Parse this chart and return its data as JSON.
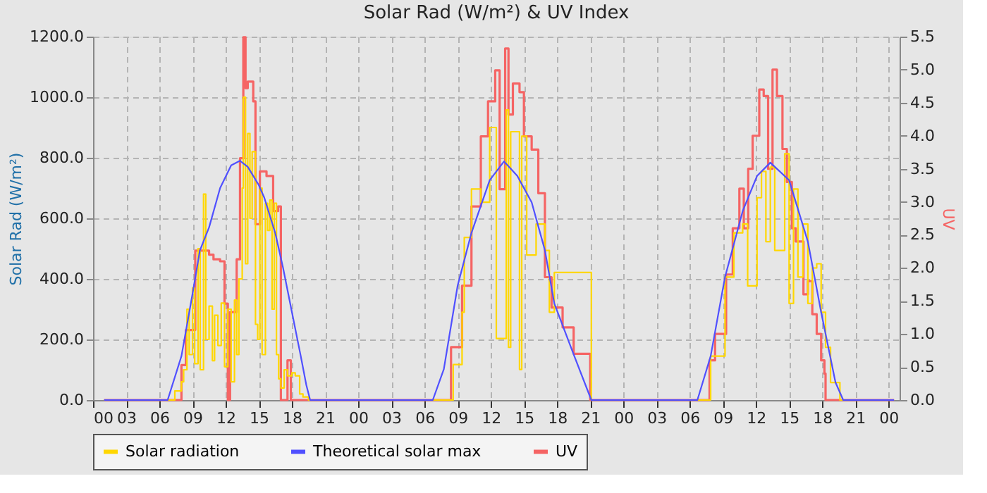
{
  "chart_data": {
    "type": "line",
    "title": "Solar Rad (W/m²) &  UV Index",
    "ylabel": "Solar Rad (W/m²)",
    "y2label": "UV",
    "xlim": [
      0,
      73
    ],
    "xticks": [
      {
        "value": 0,
        "label": "00"
      },
      {
        "value": 3,
        "label": "03"
      },
      {
        "value": 6,
        "label": "06"
      },
      {
        "value": 9,
        "label": "09"
      },
      {
        "value": 12,
        "label": "12"
      },
      {
        "value": 15,
        "label": "15"
      },
      {
        "value": 18,
        "label": "18"
      },
      {
        "value": 21,
        "label": "21"
      },
      {
        "value": 24,
        "label": "00"
      },
      {
        "value": 27,
        "label": "03"
      },
      {
        "value": 30,
        "label": "06"
      },
      {
        "value": 33,
        "label": "09"
      },
      {
        "value": 36,
        "label": "12"
      },
      {
        "value": 39,
        "label": "15"
      },
      {
        "value": 42,
        "label": "18"
      },
      {
        "value": 45,
        "label": "21"
      },
      {
        "value": 48,
        "label": "00"
      },
      {
        "value": 51,
        "label": "03"
      },
      {
        "value": 54,
        "label": "06"
      },
      {
        "value": 57,
        "label": "09"
      },
      {
        "value": 60,
        "label": "12"
      },
      {
        "value": 63,
        "label": "15"
      },
      {
        "value": 66,
        "label": "18"
      },
      {
        "value": 69,
        "label": "21"
      },
      {
        "value": 72,
        "label": "00"
      }
    ],
    "ylim": [
      0,
      1200
    ],
    "yticks": [
      {
        "value": 0,
        "label": "0.0"
      },
      {
        "value": 200,
        "label": "200.0"
      },
      {
        "value": 400,
        "label": "400.0"
      },
      {
        "value": 600,
        "label": "600.0"
      },
      {
        "value": 800,
        "label": "800.0"
      },
      {
        "value": 1000,
        "label": "1000.0"
      },
      {
        "value": 1200,
        "label": "1200.0"
      }
    ],
    "y2lim": [
      0,
      5.5
    ],
    "y2ticks": [
      {
        "value": 0,
        "label": "0.0"
      },
      0.5,
      {
        "value": 1,
        "label": "1.0"
      },
      1.5,
      {
        "value": 2,
        "label": "2.0"
      },
      2.5,
      {
        "value": 3,
        "label": "3.0"
      },
      3.5,
      {
        "value": 4,
        "label": "4.0"
      },
      4.5,
      {
        "value": 5,
        "label": "5.0"
      },
      5.5
    ],
    "grid": true,
    "legend": "bottom",
    "marker": "none",
    "series": [
      {
        "name": "Solar radiation",
        "type": "step",
        "color": "#ffd700",
        "x": [
          1,
          6.75,
          7.4,
          8,
          8.2,
          8.5,
          8.7,
          9,
          9.2,
          9.5,
          9.7,
          10,
          10.2,
          10.5,
          10.8,
          11,
          11.3,
          11.6,
          11.9,
          12.2,
          12.5,
          12.8,
          13,
          13.2,
          13.5,
          13.6,
          13.8,
          14,
          14.2,
          14.4,
          14.7,
          14.9,
          15.1,
          15.3,
          15.6,
          15.8,
          16,
          16.2,
          16.4,
          16.6,
          16.8,
          17,
          17.3,
          17.6,
          18,
          18.3,
          18.7,
          19,
          19.5,
          30.75,
          32.6,
          33.4,
          33.6,
          34.25,
          35.1,
          35.9,
          36.5,
          37.4,
          37.6,
          37.8,
          38.6,
          38.8,
          39.25,
          40.1,
          40.9,
          41.3,
          41.75,
          45.1,
          54.6,
          55.9,
          57.2,
          58,
          58.8,
          59.25,
          60.1,
          60.5,
          60.9,
          61.3,
          61.7,
          62.6,
          63,
          63.4,
          63.8,
          64.25,
          64.7,
          65.1,
          65.5,
          65.9,
          66.3,
          66.75,
          67.6,
          72.5
        ],
        "values": [
          0,
          0,
          30,
          60,
          100,
          300,
          150,
          370,
          120,
          500,
          100,
          680,
          200,
          310,
          130,
          280,
          180,
          320,
          110,
          300,
          60,
          330,
          150,
          400,
          700,
          1000,
          450,
          880,
          600,
          820,
          250,
          200,
          700,
          150,
          650,
          560,
          660,
          300,
          650,
          150,
          70,
          40,
          100,
          80,
          90,
          80,
          20,
          10,
          0,
          0,
          117,
          290,
          537,
          697,
          653,
          900,
          203,
          958,
          174,
          886,
          101,
          871,
          479,
          581,
          494,
          290,
          421,
          0,
          0,
          145,
          406,
          552,
          581,
          377,
          668,
          755,
          523,
          769,
          494,
          813,
          319,
          697,
          406,
          581,
          319,
          436,
          450,
          290,
          174,
          58,
          0,
          0
        ]
      },
      {
        "name": "Theoretical solar max",
        "color": "#5050ff",
        "x": [
          1,
          6.75,
          8,
          9,
          9.67,
          10.5,
          11.5,
          12.5,
          13.3,
          14,
          15,
          15.5,
          16.5,
          17.2,
          18,
          18.8,
          19.3,
          19.65,
          30.75,
          31.75,
          33,
          34.25,
          35.9,
          37.2,
          38.4,
          39.7,
          40.9,
          41.75,
          43.4,
          45.1,
          54.7,
          55.9,
          57.2,
          58.8,
          60.1,
          61.3,
          63,
          64.7,
          65.9,
          67.2,
          67.9,
          72.5
        ],
        "values": [
          0,
          0,
          145,
          350,
          494,
          570,
          700,
          775,
          790,
          770,
          710,
          668,
          550,
          436,
          290,
          145,
          50,
          0,
          0,
          102,
          378,
          552,
          726,
          788,
          740,
          653,
          494,
          319,
          160,
          0,
          0,
          145,
          406,
          624,
          740,
          784,
          726,
          523,
          290,
          58,
          0,
          0
        ]
      },
      {
        "name": "UV",
        "type": "step",
        "color": "#f56464",
        "axis": "y2",
        "x": [
          1,
          7.99,
          8,
          8.4,
          9.25,
          10.5,
          10.9,
          11.5,
          11.9,
          12.2,
          12.4,
          13,
          13.3,
          13.6,
          13.8,
          14,
          14.5,
          14.7,
          15.1,
          15.7,
          16.3,
          16.75,
          17,
          17.6,
          17.9,
          32.39,
          32.4,
          33.4,
          34.25,
          35.1,
          35.75,
          36.4,
          36.8,
          37.3,
          37.6,
          38,
          38.6,
          39,
          39.7,
          40.3,
          40.9,
          41.5,
          42.5,
          43.5,
          45,
          55.79,
          55.8,
          56.3,
          57.3,
          57.9,
          58.5,
          58.9,
          59.3,
          59.7,
          60.3,
          60.7,
          61.1,
          61.5,
          61.9,
          62.4,
          62.8,
          63.25,
          63.6,
          64.3,
          64.7,
          65.1,
          65.5,
          65.9,
          66.2,
          66.3,
          72.5
        ],
        "values": [
          0,
          0,
          0.53,
          1.06,
          2.26,
          2.2,
          2.13,
          2.1,
          1.46,
          0,
          1.33,
          2.13,
          3.66,
          5.49,
          4.72,
          4.82,
          4.52,
          2.66,
          3.46,
          3.39,
          2.86,
          2.93,
          0,
          0.6,
          0,
          0,
          0.8,
          1.73,
          2.93,
          3.99,
          4.52,
          4.99,
          3.19,
          5.32,
          4.32,
          4.79,
          4.66,
          3.99,
          3.79,
          3.13,
          1.86,
          1.4,
          1.1,
          0.7,
          0,
          0,
          0.6,
          1.0,
          1.9,
          2.6,
          3.2,
          2.6,
          3.5,
          4.0,
          4.7,
          4.6,
          3.5,
          5.0,
          4.6,
          3.8,
          3.3,
          2.6,
          2.4,
          1.6,
          1.8,
          1.3,
          1.0,
          0.6,
          0.4,
          0,
          0
        ]
      }
    ]
  }
}
